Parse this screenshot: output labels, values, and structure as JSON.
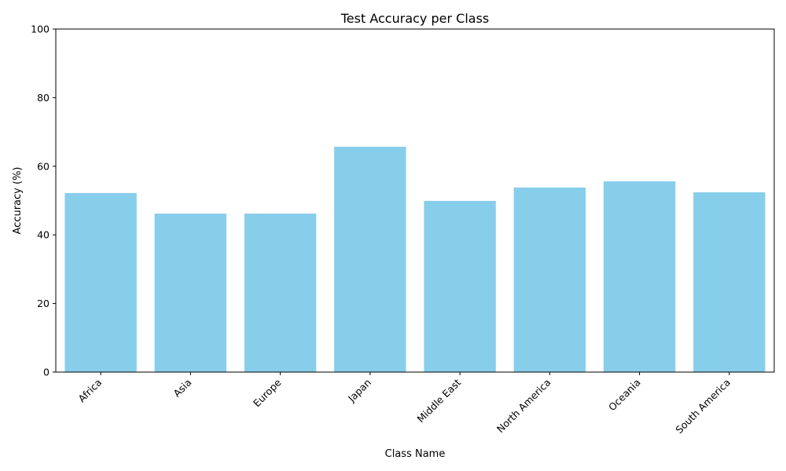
{
  "chart_data": {
    "type": "bar",
    "title": "Test Accuracy per Class",
    "xlabel": "Class Name",
    "ylabel": "Accuracy (%)",
    "categories": [
      "Africa",
      "Asia",
      "Europe",
      "Japan",
      "Middle East",
      "North America",
      "Oceania",
      "South America"
    ],
    "values": [
      52.2,
      46.2,
      46.2,
      65.7,
      49.9,
      53.8,
      55.6,
      52.4
    ],
    "ylim": [
      0,
      100
    ],
    "yticks": [
      0,
      20,
      40,
      60,
      80,
      100
    ],
    "bar_color": "#87CEEB",
    "grid": false,
    "xtick_rotation": 45
  }
}
